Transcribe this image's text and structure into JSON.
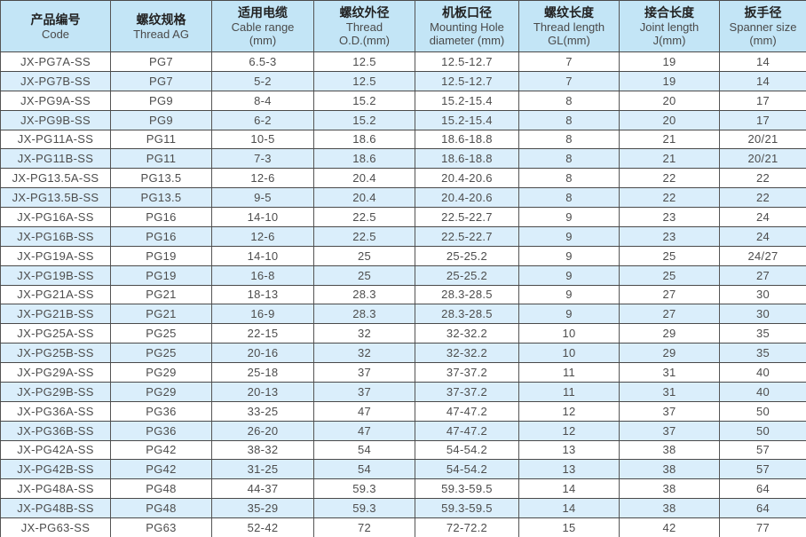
{
  "colors": {
    "header_bg": "#c3e5f6",
    "row_bg": "#ffffff",
    "row_alt_bg": "#daeefb",
    "border": "#4a4a4a",
    "text": "#4d4d4d"
  },
  "table": {
    "columns": [
      {
        "key": "code",
        "width": 124,
        "lines": [
          "产品编号",
          "Code"
        ]
      },
      {
        "key": "thread_spec",
        "width": 114,
        "lines": [
          "螺纹规格",
          "Thread AG"
        ]
      },
      {
        "key": "cable_range",
        "width": 115,
        "lines": [
          "适用电缆",
          "Cable range",
          "(mm)"
        ]
      },
      {
        "key": "thread_od",
        "width": 114,
        "lines": [
          "螺纹外径",
          "Thread",
          "O.D.(mm)"
        ]
      },
      {
        "key": "mounting_hole",
        "width": 117,
        "lines": [
          "机板口径",
          "Mounting Hole",
          "diameter (mm)"
        ]
      },
      {
        "key": "thread_length",
        "width": 113,
        "lines": [
          "螺纹长度",
          "Thread length",
          "GL(mm)"
        ]
      },
      {
        "key": "joint_length",
        "width": 113,
        "lines": [
          "接合长度",
          "Joint length",
          "J(mm)"
        ]
      },
      {
        "key": "spanner_size",
        "width": 98,
        "lines": [
          "扳手径",
          "Spanner size",
          "(mm)"
        ]
      }
    ],
    "rows": [
      [
        "JX-PG7A-SS",
        "PG7",
        "6.5-3",
        "12.5",
        "12.5-12.7",
        "7",
        "19",
        "14"
      ],
      [
        "JX-PG7B-SS",
        "PG7",
        "5-2",
        "12.5",
        "12.5-12.7",
        "7",
        "19",
        "14"
      ],
      [
        "JX-PG9A-SS",
        "PG9",
        "8-4",
        "15.2",
        "15.2-15.4",
        "8",
        "20",
        "17"
      ],
      [
        "JX-PG9B-SS",
        "PG9",
        "6-2",
        "15.2",
        "15.2-15.4",
        "8",
        "20",
        "17"
      ],
      [
        "JX-PG11A-SS",
        "PG11",
        "10-5",
        "18.6",
        "18.6-18.8",
        "8",
        "21",
        "20/21"
      ],
      [
        "JX-PG11B-SS",
        "PG11",
        "7-3",
        "18.6",
        "18.6-18.8",
        "8",
        "21",
        "20/21"
      ],
      [
        "JX-PG13.5A-SS",
        "PG13.5",
        "12-6",
        "20.4",
        "20.4-20.6",
        "8",
        "22",
        "22"
      ],
      [
        "JX-PG13.5B-SS",
        "PG13.5",
        "9-5",
        "20.4",
        "20.4-20.6",
        "8",
        "22",
        "22"
      ],
      [
        "JX-PG16A-SS",
        "PG16",
        "14-10",
        "22.5",
        "22.5-22.7",
        "9",
        "23",
        "24"
      ],
      [
        "JX-PG16B-SS",
        "PG16",
        "12-6",
        "22.5",
        "22.5-22.7",
        "9",
        "23",
        "24"
      ],
      [
        "JX-PG19A-SS",
        "PG19",
        "14-10",
        "25",
        "25-25.2",
        "9",
        "25",
        "24/27"
      ],
      [
        "JX-PG19B-SS",
        "PG19",
        "16-8",
        "25",
        "25-25.2",
        "9",
        "25",
        "27"
      ],
      [
        "JX-PG21A-SS",
        "PG21",
        "18-13",
        "28.3",
        "28.3-28.5",
        "9",
        "27",
        "30"
      ],
      [
        "JX-PG21B-SS",
        "PG21",
        "16-9",
        "28.3",
        "28.3-28.5",
        "9",
        "27",
        "30"
      ],
      [
        "JX-PG25A-SS",
        "PG25",
        "22-15",
        "32",
        "32-32.2",
        "10",
        "29",
        "35"
      ],
      [
        "JX-PG25B-SS",
        "PG25",
        "20-16",
        "32",
        "32-32.2",
        "10",
        "29",
        "35"
      ],
      [
        "JX-PG29A-SS",
        "PG29",
        "25-18",
        "37",
        "37-37.2",
        "11",
        "31",
        "40"
      ],
      [
        "JX-PG29B-SS",
        "PG29",
        "20-13",
        "37",
        "37-37.2",
        "11",
        "31",
        "40"
      ],
      [
        "JX-PG36A-SS",
        "PG36",
        "33-25",
        "47",
        "47-47.2",
        "12",
        "37",
        "50"
      ],
      [
        "JX-PG36B-SS",
        "PG36",
        "26-20",
        "47",
        "47-47.2",
        "12",
        "37",
        "50"
      ],
      [
        "JX-PG42A-SS",
        "PG42",
        "38-32",
        "54",
        "54-54.2",
        "13",
        "38",
        "57"
      ],
      [
        "JX-PG42B-SS",
        "PG42",
        "31-25",
        "54",
        "54-54.2",
        "13",
        "38",
        "57"
      ],
      [
        "JX-PG48A-SS",
        "PG48",
        "44-37",
        "59.3",
        "59.3-59.5",
        "14",
        "38",
        "64"
      ],
      [
        "JX-PG48B-SS",
        "PG48",
        "35-29",
        "59.3",
        "59.3-59.5",
        "14",
        "38",
        "64"
      ],
      [
        "JX-PG63-SS",
        "PG63",
        "52-42",
        "72",
        "72-72.2",
        "15",
        "42",
        "77"
      ]
    ]
  }
}
